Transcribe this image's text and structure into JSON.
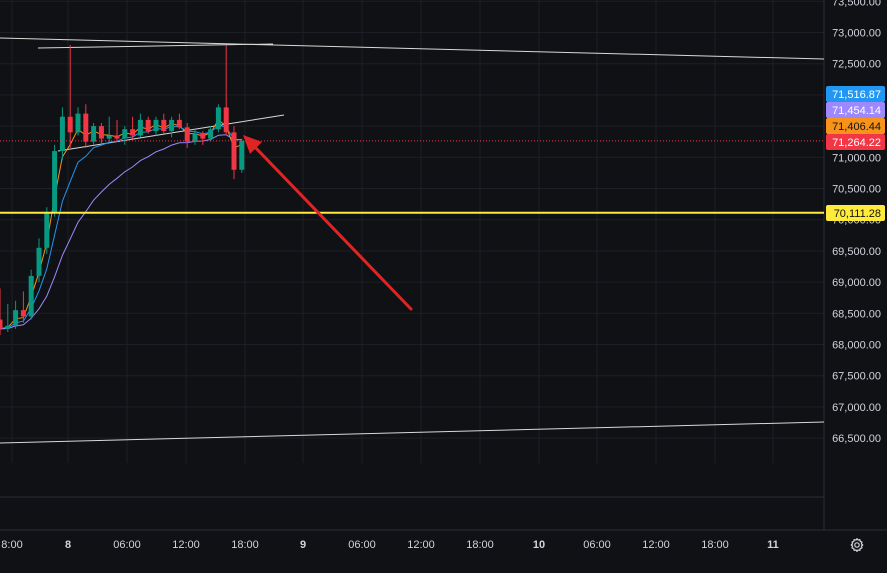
{
  "chart_data": {
    "type": "candlestick",
    "x_ticks": [
      "8:00",
      "8",
      "06:00",
      "12:00",
      "18:00",
      "9",
      "06:00",
      "12:00",
      "18:00",
      "10",
      "06:00",
      "12:00",
      "18:00",
      "11"
    ],
    "y_ticks": [
      "73,500.00",
      "73,000.00",
      "72,500.00",
      "72,000.00",
      "71,500.00",
      "71,000.00",
      "70,500.00",
      "70,000.00",
      "69,500.00",
      "69,000.00",
      "68,500.00",
      "68,000.00",
      "67,500.00",
      "67,000.00",
      "66,500.00"
    ],
    "y_tick_values": [
      73500,
      73000,
      72500,
      72000,
      71500,
      71000,
      70500,
      70000,
      69500,
      69000,
      68500,
      68000,
      67500,
      67000,
      66500
    ],
    "price_tags": [
      {
        "label": "71,516.87",
        "value": 71516.87,
        "color": "#2196f3",
        "text_color": "#ffffff"
      },
      {
        "label": "71,454.14",
        "value": 71454.14,
        "color": "#9c88ff",
        "text_color": "#ffffff"
      },
      {
        "label": "71,406.44",
        "value": 71406.44,
        "color": "#f7931a",
        "text_color": "#111111"
      },
      {
        "label": "71,264.22",
        "value": 71264.22,
        "color": "#f23645",
        "text_color": "#ffffff"
      },
      {
        "label": "70,111.28",
        "value": 70111.28,
        "color": "#ffeb3b",
        "text_color": "#111111"
      }
    ],
    "candles": [
      {
        "o": 68400,
        "h": 68900,
        "l": 68150,
        "c": 68250
      },
      {
        "o": 68250,
        "h": 68650,
        "l": 68200,
        "c": 68300
      },
      {
        "o": 68300,
        "h": 68700,
        "l": 68250,
        "c": 68550
      },
      {
        "o": 68550,
        "h": 68850,
        "l": 68350,
        "c": 68450
      },
      {
        "o": 68450,
        "h": 69200,
        "l": 68400,
        "c": 69100
      },
      {
        "o": 69100,
        "h": 69700,
        "l": 69000,
        "c": 69550
      },
      {
        "o": 69550,
        "h": 70200,
        "l": 69450,
        "c": 70100
      },
      {
        "o": 70100,
        "h": 71200,
        "l": 70050,
        "c": 71100
      },
      {
        "o": 71100,
        "h": 71800,
        "l": 70950,
        "c": 71650
      },
      {
        "o": 71650,
        "h": 72800,
        "l": 71150,
        "c": 71400
      },
      {
        "o": 71400,
        "h": 71800,
        "l": 71350,
        "c": 71700
      },
      {
        "o": 71700,
        "h": 71850,
        "l": 71150,
        "c": 71250
      },
      {
        "o": 71250,
        "h": 71550,
        "l": 71200,
        "c": 71500
      },
      {
        "o": 71500,
        "h": 71550,
        "l": 71200,
        "c": 71300
      },
      {
        "o": 71300,
        "h": 71650,
        "l": 71250,
        "c": 71350
      },
      {
        "o": 71350,
        "h": 71600,
        "l": 71250,
        "c": 71300
      },
      {
        "o": 71300,
        "h": 71500,
        "l": 71200,
        "c": 71450
      },
      {
        "o": 71450,
        "h": 71650,
        "l": 71300,
        "c": 71350
      },
      {
        "o": 71350,
        "h": 71700,
        "l": 71320,
        "c": 71600
      },
      {
        "o": 71600,
        "h": 71650,
        "l": 71380,
        "c": 71420
      },
      {
        "o": 71420,
        "h": 71650,
        "l": 71350,
        "c": 71600
      },
      {
        "o": 71600,
        "h": 71700,
        "l": 71380,
        "c": 71420
      },
      {
        "o": 71420,
        "h": 71650,
        "l": 71320,
        "c": 71600
      },
      {
        "o": 71600,
        "h": 71700,
        "l": 71450,
        "c": 71480
      },
      {
        "o": 71480,
        "h": 71550,
        "l": 71150,
        "c": 71250
      },
      {
        "o": 71250,
        "h": 71450,
        "l": 71200,
        "c": 71380
      },
      {
        "o": 71380,
        "h": 71420,
        "l": 71200,
        "c": 71300
      },
      {
        "o": 71300,
        "h": 71500,
        "l": 71250,
        "c": 71450
      },
      {
        "o": 71450,
        "h": 71850,
        "l": 71400,
        "c": 71800
      },
      {
        "o": 71800,
        "h": 72800,
        "l": 71350,
        "c": 71400
      },
      {
        "o": 71400,
        "h": 71500,
        "l": 70650,
        "c": 70800
      },
      {
        "o": 70800,
        "h": 71300,
        "l": 70750,
        "c": 71264.22
      }
    ],
    "grid": true,
    "has_annotation_arrow": true
  },
  "colors": {
    "background": "#0f1114",
    "grid": "#1c1f26",
    "up": "#089981",
    "down": "#f23645",
    "axis_text": "#d1d4dc",
    "trend_line": "#d9d9d9",
    "arrow": "#e02424",
    "support": "#ffeb3b"
  },
  "icons": {
    "settings": "gear-icon"
  }
}
